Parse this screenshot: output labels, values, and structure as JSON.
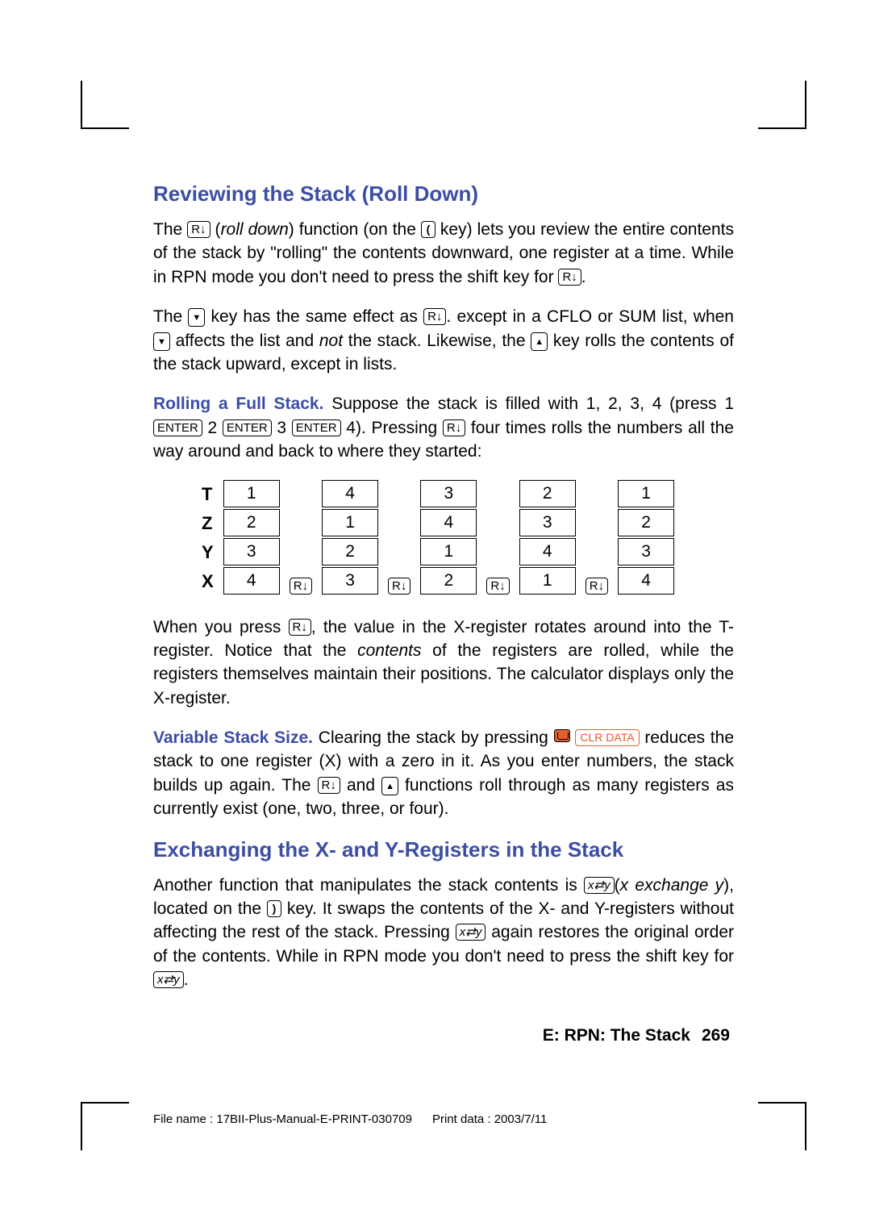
{
  "heading1": "Reviewing the Stack (Roll Down)",
  "para1_a": "The ",
  "key_rdown": "R↓",
  "para1_b": " (",
  "para1_c": "roll down",
  "para1_d": ") function (on the ",
  "key_paren_l": "(",
  "para1_e": " key) lets you review the entire contents of the stack by \"rolling\" the contents downward, one register at a time. While in RPN mode you don't need to press the shift key for ",
  "para1_f": ".",
  "para2_a": "The ",
  "key_down": "▼",
  "para2_b": " key has the same effect as ",
  "para2_c": ". except in a CFLO or SUM list, when ",
  "para2_d": " affects the list and ",
  "para2_e": "not",
  "para2_f": " the stack. Likewise, the ",
  "key_up": "▲",
  "para2_g": " key rolls the contents of the stack upward, except in lists.",
  "para3_label": "Rolling a Full Stack.",
  "para3_a": " Suppose the stack is filled with 1, 2, 3, 4 (press 1 ",
  "key_enter": "ENTER",
  "para3_b": " 2 ",
  "para3_c": " 3 ",
  "para3_d": " 4). Pressing ",
  "para3_e": " four times rolls the numbers all the way around and back to where they started:",
  "registers": [
    "T",
    "Z",
    "Y",
    "X"
  ],
  "stacks": [
    [
      "1",
      "2",
      "3",
      "4"
    ],
    [
      "4",
      "1",
      "2",
      "3"
    ],
    [
      "3",
      "4",
      "1",
      "2"
    ],
    [
      "2",
      "3",
      "4",
      "1"
    ],
    [
      "1",
      "2",
      "3",
      "4"
    ]
  ],
  "para4_a": "When you press ",
  "para4_b": ", the value in the X-register rotates around into the T-register. Notice that the ",
  "para4_c": "contents",
  "para4_d": " of the registers are rolled, while the registers themselves maintain their positions. The calculator displays only the X-register.",
  "para5_label": "Variable Stack Size.",
  "para5_a": " Clearing the stack by pressing ",
  "key_clrdata": "CLR DATA",
  "para5_b": " reduces the stack to one register (X) with a zero in it. As you enter numbers, the stack builds up again. The ",
  "para5_c": " and ",
  "para5_d": " functions roll through as many registers as currently exist (one, two, three, or four).",
  "heading2": "Exchanging the X- and Y-Registers in the Stack",
  "para6_a": "Another function that manipulates the stack contents is ",
  "key_xzy": "x⇄y",
  "para6_b": "(",
  "para6_c": "x exchange y",
  "para6_d": "), located on the ",
  "key_paren_r": ")",
  "para6_e": " key. It swaps the contents of the X- and Y-registers without affecting the rest of the stack. Pressing ",
  "para6_f": " again restores the original order of the contents. While in RPN mode you don't need to press the shift key for ",
  "para6_g": ".",
  "footer_section": "E: RPN: The Stack",
  "footer_page": "269",
  "print_filename": "File name : 17BII-Plus-Manual-E-PRINT-030709",
  "print_date": "Print data : 2003/7/11",
  "colors": {
    "heading": "#3b4ea3",
    "orange": "#e06030",
    "text": "#000000",
    "bg": "#ffffff"
  }
}
